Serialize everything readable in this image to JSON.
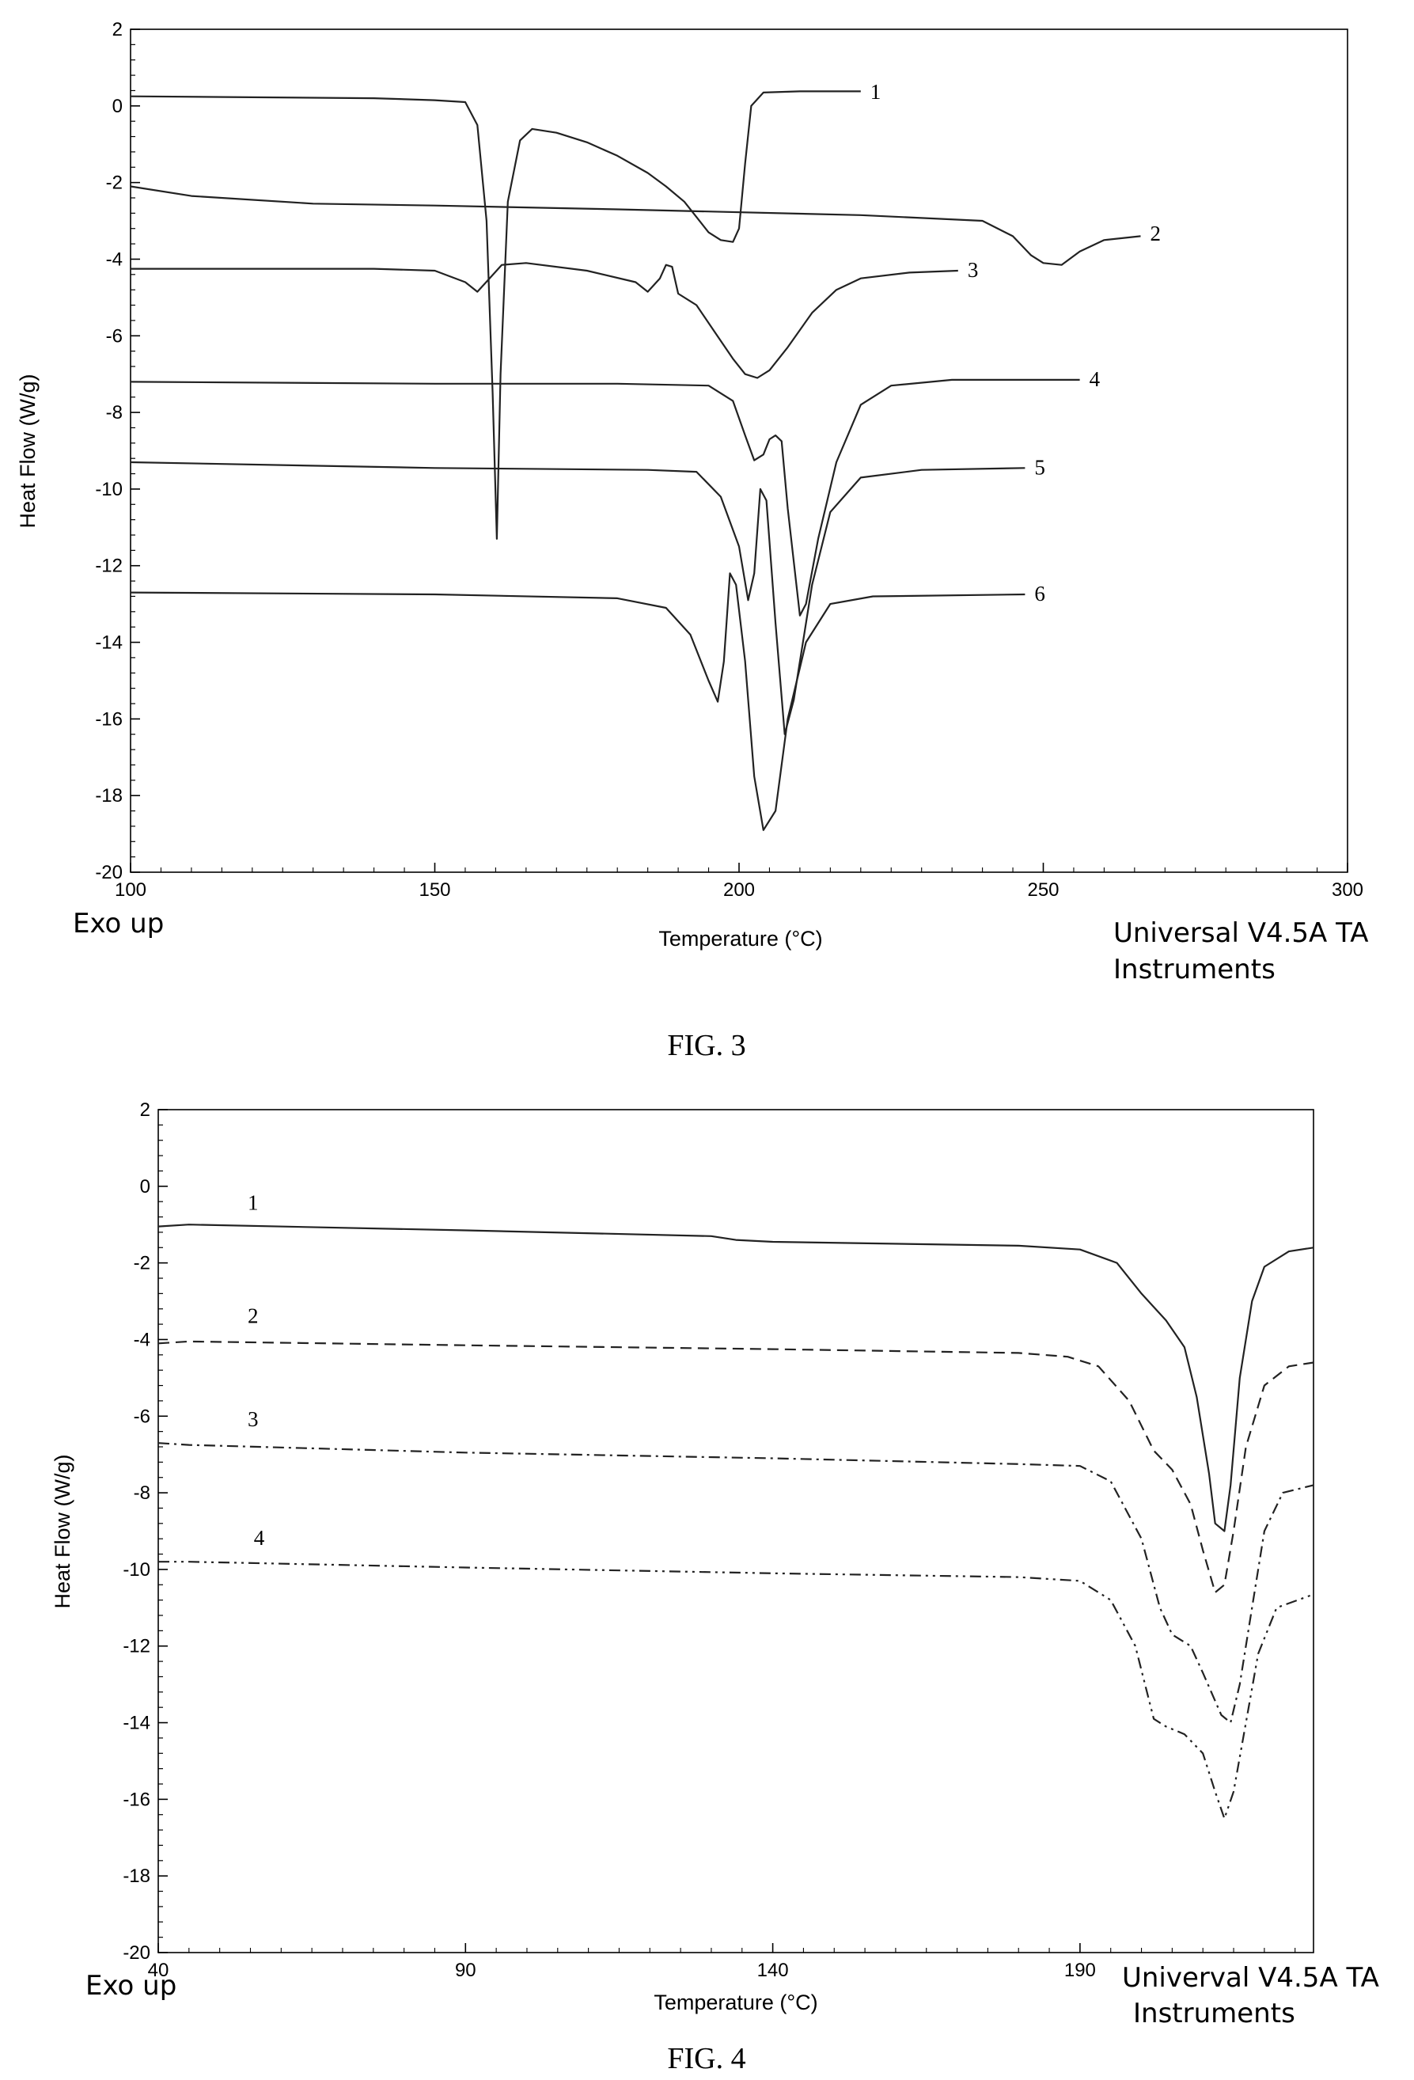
{
  "chart_data": [
    {
      "type": "line",
      "figure_caption": "FIG. 3",
      "xlabel": "Temperature (°C)",
      "ylabel": "Heat Flow (W/g)",
      "xlim": [
        100,
        300
      ],
      "ylim": [
        -20,
        2
      ],
      "x_ticks": [
        100,
        150,
        200,
        250,
        300
      ],
      "y_ticks": [
        2,
        0,
        -2,
        -4,
        -6,
        -8,
        -10,
        -12,
        -14,
        -16,
        -18,
        -20
      ],
      "footer_left": "Exo up",
      "footer_right_line1": "Universal V4.5A TA",
      "footer_right_line2": "Instruments",
      "grid": false,
      "series": [
        {
          "name": "1",
          "dash": "",
          "label_at": [
            220,
            0.35
          ],
          "points": [
            [
              100,
              0.25
            ],
            [
              140,
              0.2
            ],
            [
              150,
              0.15
            ],
            [
              155,
              0.1
            ],
            [
              157,
              -0.5
            ],
            [
              158.5,
              -3
            ],
            [
              159.5,
              -7.5
            ],
            [
              160.2,
              -11.3
            ],
            [
              160.8,
              -7
            ],
            [
              162,
              -2.5
            ],
            [
              164,
              -0.9
            ],
            [
              166,
              -0.6
            ],
            [
              170,
              -0.7
            ],
            [
              175,
              -0.95
            ],
            [
              180,
              -1.3
            ],
            [
              185,
              -1.75
            ],
            [
              188,
              -2.1
            ],
            [
              191,
              -2.5
            ],
            [
              193,
              -2.9
            ],
            [
              195,
              -3.3
            ],
            [
              197,
              -3.5
            ],
            [
              199,
              -3.55
            ],
            [
              200,
              -3.2
            ],
            [
              201,
              -1.5
            ],
            [
              202,
              0
            ],
            [
              204,
              0.35
            ],
            [
              210,
              0.38
            ],
            [
              220,
              0.38
            ]
          ]
        },
        {
          "name": "2",
          "dash": "",
          "label_at": [
            266,
            -3.35
          ],
          "points": [
            [
              100,
              -2.1
            ],
            [
              110,
              -2.35
            ],
            [
              130,
              -2.55
            ],
            [
              150,
              -2.6
            ],
            [
              180,
              -2.7
            ],
            [
              220,
              -2.85
            ],
            [
              240,
              -3.0
            ],
            [
              245,
              -3.4
            ],
            [
              248,
              -3.9
            ],
            [
              250,
              -4.1
            ],
            [
              253,
              -4.15
            ],
            [
              256,
              -3.8
            ],
            [
              260,
              -3.5
            ],
            [
              266,
              -3.4
            ]
          ]
        },
        {
          "name": "3",
          "dash": "",
          "label_at": [
            236,
            -4.3
          ],
          "points": [
            [
              100,
              -4.25
            ],
            [
              140,
              -4.25
            ],
            [
              150,
              -4.3
            ],
            [
              155,
              -4.6
            ],
            [
              157,
              -4.85
            ],
            [
              159,
              -4.5
            ],
            [
              161,
              -4.15
            ],
            [
              165,
              -4.1
            ],
            [
              175,
              -4.3
            ],
            [
              183,
              -4.6
            ],
            [
              185,
              -4.85
            ],
            [
              187,
              -4.5
            ],
            [
              188,
              -4.15
            ],
            [
              189,
              -4.2
            ],
            [
              190,
              -4.9
            ],
            [
              193,
              -5.2
            ],
            [
              196,
              -5.9
            ],
            [
              199,
              -6.6
            ],
            [
              201,
              -7.0
            ],
            [
              203,
              -7.1
            ],
            [
              205,
              -6.9
            ],
            [
              208,
              -6.3
            ],
            [
              212,
              -5.4
            ],
            [
              216,
              -4.8
            ],
            [
              220,
              -4.5
            ],
            [
              228,
              -4.35
            ],
            [
              236,
              -4.3
            ]
          ]
        },
        {
          "name": "4",
          "dash": "",
          "label_at": [
            256,
            -7.15
          ],
          "points": [
            [
              100,
              -7.2
            ],
            [
              150,
              -7.25
            ],
            [
              180,
              -7.25
            ],
            [
              195,
              -7.3
            ],
            [
              199,
              -7.7
            ],
            [
              201,
              -8.6
            ],
            [
              202.5,
              -9.25
            ],
            [
              204,
              -9.1
            ],
            [
              205,
              -8.7
            ],
            [
              206,
              -8.6
            ],
            [
              207,
              -8.75
            ],
            [
              208,
              -10.5
            ],
            [
              210,
              -13.3
            ],
            [
              211,
              -13.0
            ],
            [
              213,
              -11.3
            ],
            [
              216,
              -9.3
            ],
            [
              220,
              -7.8
            ],
            [
              225,
              -7.3
            ],
            [
              235,
              -7.15
            ],
            [
              256,
              -7.15
            ]
          ]
        },
        {
          "name": "5",
          "dash": "",
          "label_at": [
            247,
            -9.45
          ],
          "points": [
            [
              100,
              -9.3
            ],
            [
              150,
              -9.45
            ],
            [
              185,
              -9.5
            ],
            [
              193,
              -9.55
            ],
            [
              197,
              -10.2
            ],
            [
              200,
              -11.5
            ],
            [
              201.5,
              -12.9
            ],
            [
              202.5,
              -12.2
            ],
            [
              203.5,
              -10.0
            ],
            [
              204.5,
              -10.3
            ],
            [
              206,
              -13.5
            ],
            [
              207.5,
              -16.4
            ],
            [
              209,
              -15.5
            ],
            [
              212,
              -12.5
            ],
            [
              215,
              -10.6
            ],
            [
              220,
              -9.7
            ],
            [
              230,
              -9.5
            ],
            [
              247,
              -9.45
            ]
          ]
        },
        {
          "name": "6",
          "dash": "",
          "label_at": [
            247,
            -12.75
          ],
          "points": [
            [
              100,
              -12.7
            ],
            [
              150,
              -12.75
            ],
            [
              180,
              -12.85
            ],
            [
              188,
              -13.1
            ],
            [
              192,
              -13.8
            ],
            [
              195,
              -15.0
            ],
            [
              196.5,
              -15.55
            ],
            [
              197.5,
              -14.5
            ],
            [
              198.5,
              -12.2
            ],
            [
              199.5,
              -12.5
            ],
            [
              201,
              -14.5
            ],
            [
              202.5,
              -17.5
            ],
            [
              204,
              -18.9
            ],
            [
              206,
              -18.4
            ],
            [
              208,
              -16.0
            ],
            [
              211,
              -14.0
            ],
            [
              215,
              -13.0
            ],
            [
              222,
              -12.8
            ],
            [
              247,
              -12.75
            ]
          ]
        }
      ]
    },
    {
      "type": "line",
      "figure_caption": "FIG. 4",
      "xlabel": "Temperature (°C)",
      "ylabel": "Heat Flow (W/g)",
      "xlim": [
        40,
        228
      ],
      "ylim": [
        -20,
        2
      ],
      "x_ticks": [
        40,
        90,
        140,
        190
      ],
      "y_ticks": [
        2,
        0,
        -2,
        -4,
        -6,
        -8,
        -10,
        -12,
        -14,
        -16,
        -18,
        -20
      ],
      "footer_left": "Exo up",
      "footer_right_line1": "Univerval V4.5A TA",
      "footer_right_line2": "Instruments",
      "grid": false,
      "series": [
        {
          "name": "1",
          "dash": "",
          "label_at": [
            53,
            -0.45
          ],
          "points": [
            [
              40,
              -1.05
            ],
            [
              45,
              -1.0
            ],
            [
              90,
              -1.15
            ],
            [
              130,
              -1.3
            ],
            [
              134,
              -1.4
            ],
            [
              140,
              -1.45
            ],
            [
              180,
              -1.55
            ],
            [
              190,
              -1.65
            ],
            [
              196,
              -2.0
            ],
            [
              200,
              -2.8
            ],
            [
              204,
              -3.5
            ],
            [
              207,
              -4.2
            ],
            [
              209,
              -5.5
            ],
            [
              211,
              -7.5
            ],
            [
              212,
              -8.8
            ],
            [
              213.5,
              -9.0
            ],
            [
              214.5,
              -7.8
            ],
            [
              216,
              -5.0
            ],
            [
              218,
              -3.0
            ],
            [
              220,
              -2.1
            ],
            [
              224,
              -1.7
            ],
            [
              228,
              -1.6
            ]
          ]
        },
        {
          "name": "2",
          "dash": "14 8",
          "label_at": [
            53,
            -3.4
          ],
          "points": [
            [
              40,
              -4.1
            ],
            [
              45,
              -4.05
            ],
            [
              90,
              -4.15
            ],
            [
              140,
              -4.25
            ],
            [
              180,
              -4.35
            ],
            [
              188,
              -4.45
            ],
            [
              193,
              -4.7
            ],
            [
              198,
              -5.6
            ],
            [
              202,
              -6.9
            ],
            [
              205,
              -7.4
            ],
            [
              208,
              -8.3
            ],
            [
              210,
              -9.5
            ],
            [
              212,
              -10.6
            ],
            [
              213.5,
              -10.4
            ],
            [
              215,
              -9.0
            ],
            [
              217,
              -6.8
            ],
            [
              220,
              -5.2
            ],
            [
              224,
              -4.7
            ],
            [
              228,
              -4.6
            ]
          ]
        },
        {
          "name": "3",
          "dash": "14 6 3 6",
          "label_at": [
            53,
            -6.1
          ],
          "points": [
            [
              40,
              -6.7
            ],
            [
              45,
              -6.75
            ],
            [
              90,
              -6.95
            ],
            [
              140,
              -7.1
            ],
            [
              180,
              -7.25
            ],
            [
              190,
              -7.3
            ],
            [
              195,
              -7.7
            ],
            [
              200,
              -9.2
            ],
            [
              203,
              -11.0
            ],
            [
              205,
              -11.7
            ],
            [
              208,
              -12.0
            ],
            [
              210,
              -12.7
            ],
            [
              213,
              -13.8
            ],
            [
              214.5,
              -14.0
            ],
            [
              216,
              -13.0
            ],
            [
              218,
              -11.0
            ],
            [
              220,
              -9.0
            ],
            [
              223,
              -8.0
            ],
            [
              228,
              -7.8
            ]
          ]
        },
        {
          "name": "4",
          "dash": "14 6 3 6 3 6",
          "label_at": [
            54,
            -9.2
          ],
          "points": [
            [
              40,
              -9.8
            ],
            [
              45,
              -9.8
            ],
            [
              90,
              -9.95
            ],
            [
              140,
              -10.1
            ],
            [
              180,
              -10.2
            ],
            [
              190,
              -10.3
            ],
            [
              195,
              -10.8
            ],
            [
              199,
              -12.0
            ],
            [
              202,
              -13.9
            ],
            [
              204,
              -14.1
            ],
            [
              207,
              -14.3
            ],
            [
              210,
              -14.8
            ],
            [
              212,
              -15.8
            ],
            [
              213.5,
              -16.5
            ],
            [
              215,
              -15.8
            ],
            [
              217,
              -14.0
            ],
            [
              219,
              -12.2
            ],
            [
              222,
              -11.0
            ],
            [
              228,
              -10.65
            ]
          ]
        }
      ]
    }
  ]
}
